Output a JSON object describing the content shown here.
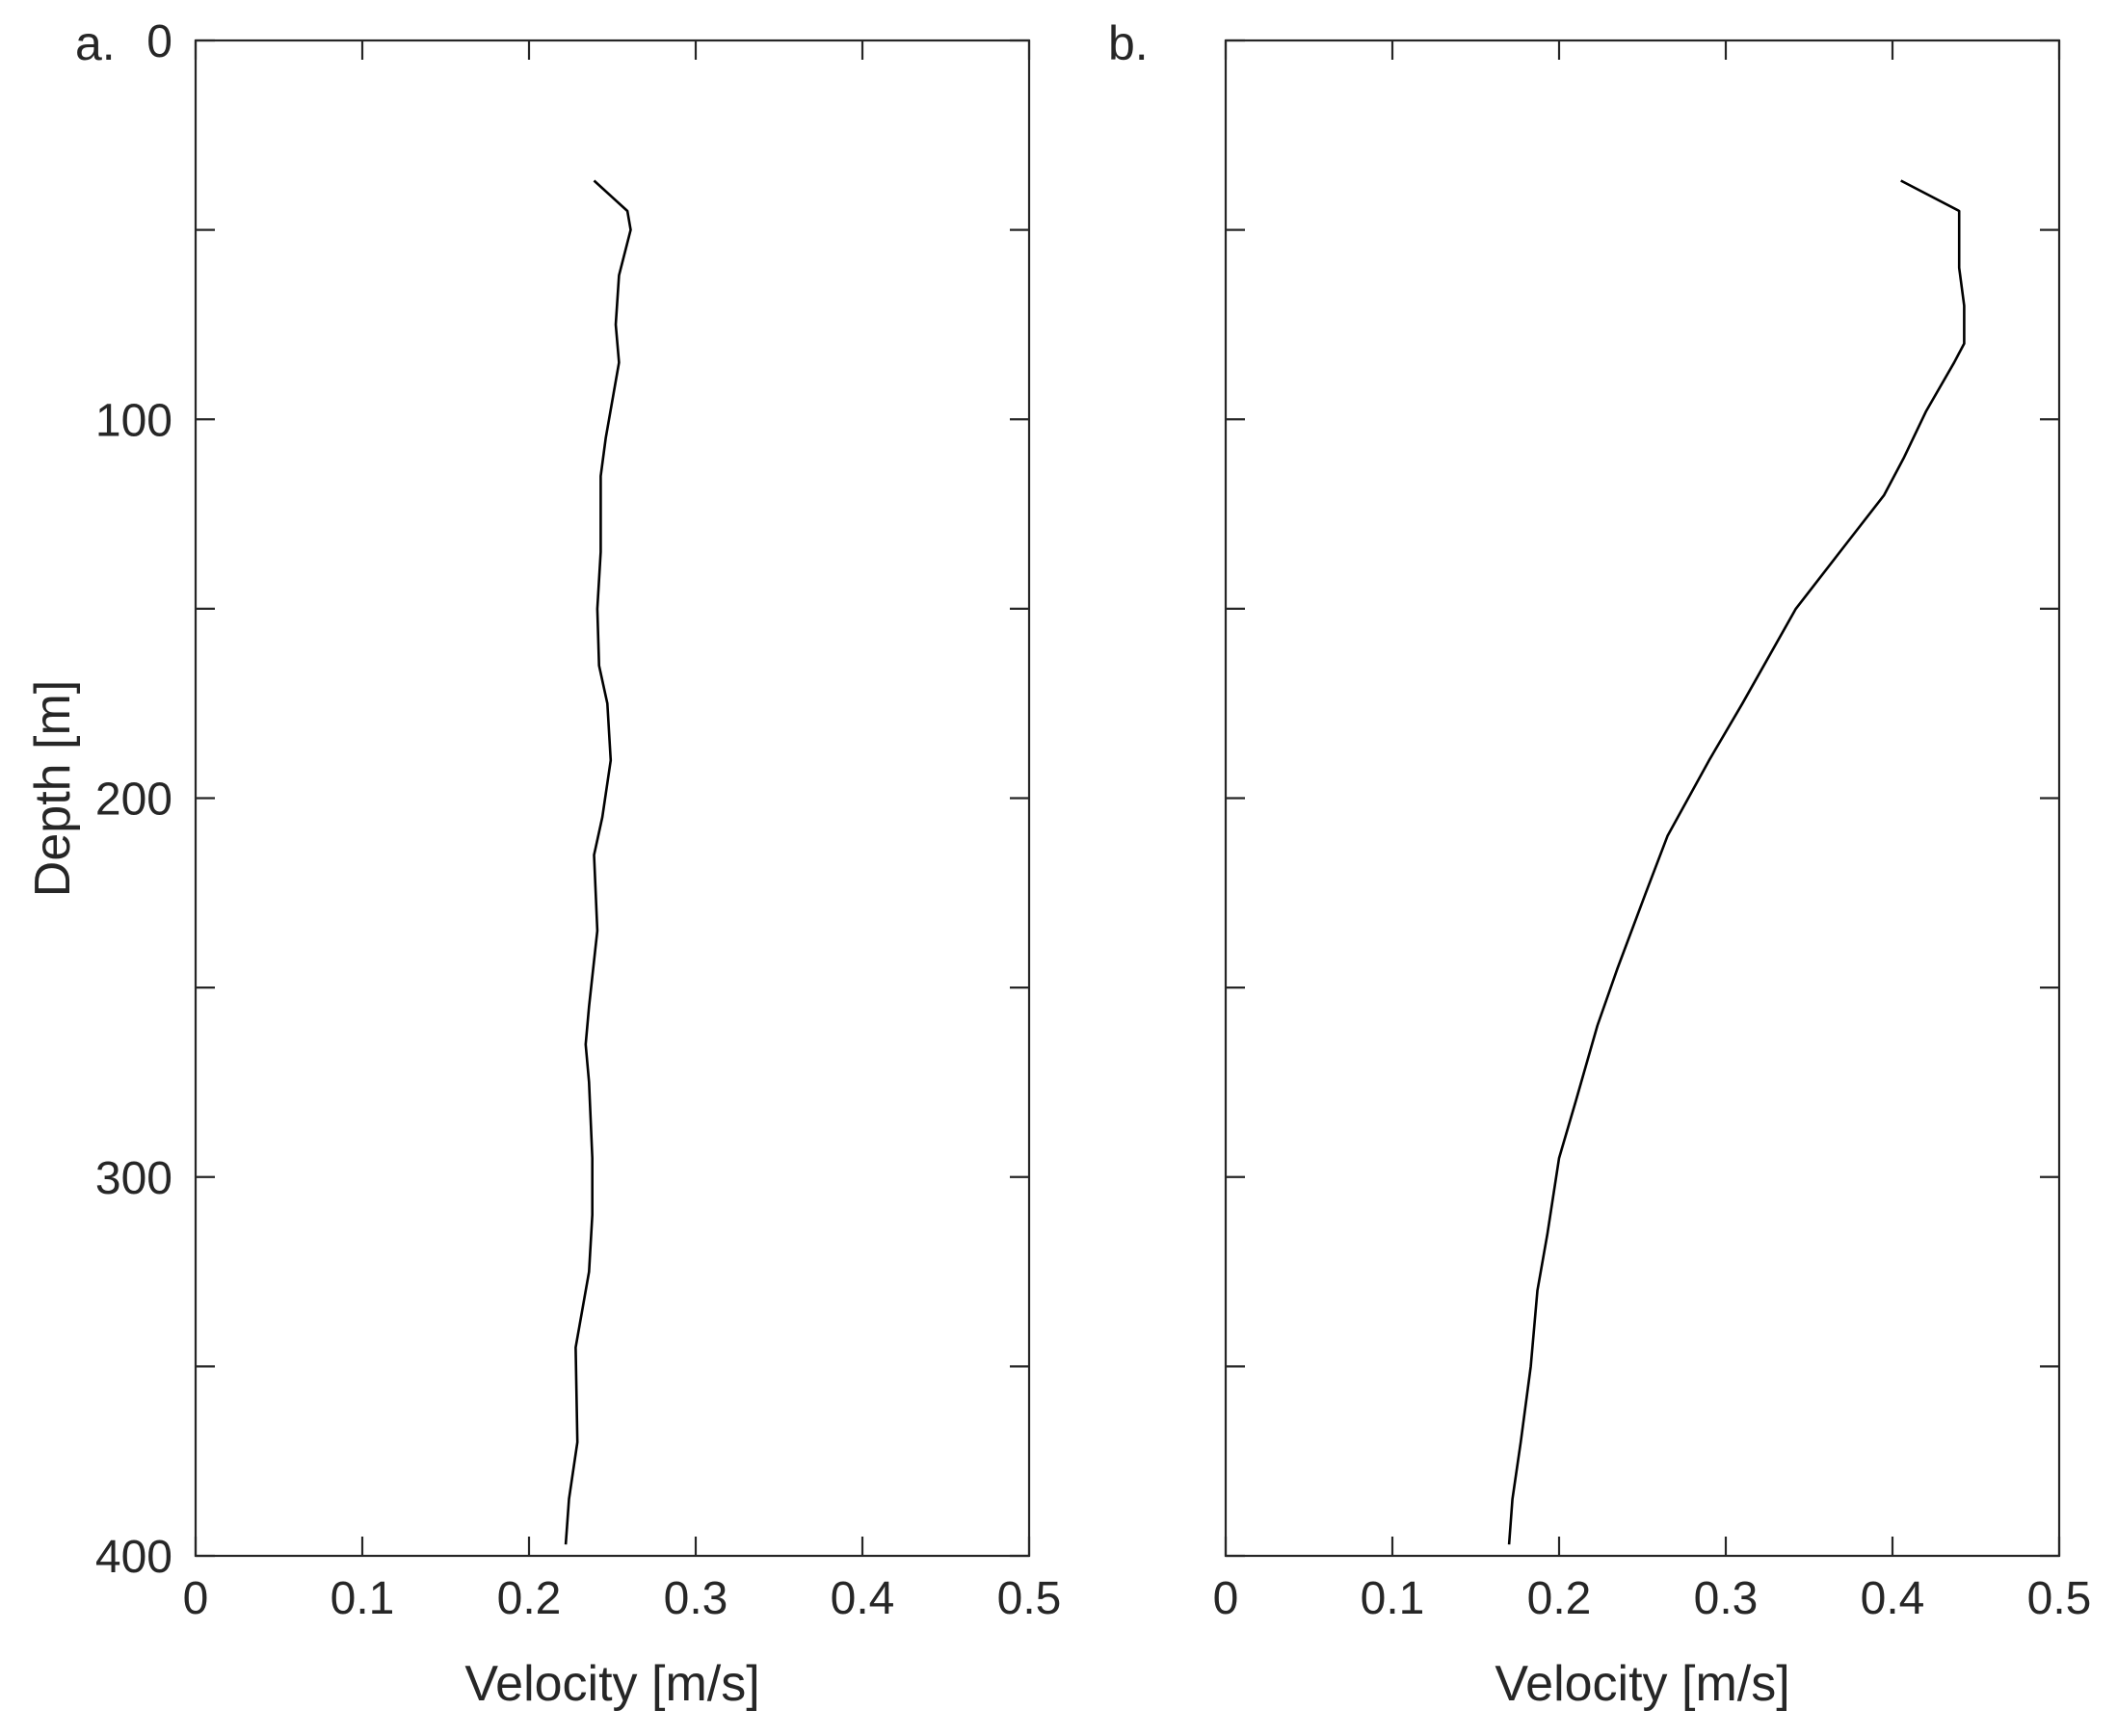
{
  "figure": {
    "panel_letters": [
      "a.",
      "b."
    ]
  },
  "chart_data": [
    {
      "type": "line",
      "panel": "a.",
      "xlabel": "Velocity [m/s]",
      "ylabel": "Depth [m]",
      "xlim": [
        0,
        0.5
      ],
      "ylim": [
        0,
        400
      ],
      "y_reversed": true,
      "xticks": [
        "0",
        "0.1",
        "0.2",
        "0.3",
        "0.4",
        "0.5"
      ],
      "yticks": [
        "0",
        "100",
        "200",
        "300",
        "400"
      ],
      "grid": false,
      "series": [
        {
          "x": [
            0.239,
            0.259,
            0.261,
            0.254,
            0.252,
            0.254,
            0.246,
            0.243,
            0.243,
            0.241,
            0.242,
            0.247,
            0.249,
            0.244,
            0.239,
            0.241,
            0.236,
            0.234,
            0.236,
            0.238,
            0.238,
            0.236,
            0.228,
            0.229,
            0.224,
            0.222
          ],
          "y": [
            37,
            45,
            50,
            62,
            75,
            85,
            105,
            115,
            135,
            150,
            165,
            175,
            190,
            205,
            215,
            235,
            255,
            265,
            275,
            295,
            310,
            325,
            345,
            370,
            385,
            397
          ]
        }
      ]
    },
    {
      "type": "line",
      "panel": "b.",
      "xlabel": "Velocity [m/s]",
      "ylabel": "",
      "xlim": [
        0,
        0.5
      ],
      "ylim": [
        0,
        400
      ],
      "y_reversed": true,
      "xticks": [
        "0",
        "0.1",
        "0.2",
        "0.3",
        "0.4",
        "0.5"
      ],
      "yticks": [],
      "grid": false,
      "series": [
        {
          "x": [
            0.405,
            0.44,
            0.44,
            0.443,
            0.443,
            0.437,
            0.42,
            0.407,
            0.395,
            0.372,
            0.342,
            0.31,
            0.29,
            0.265,
            0.252,
            0.235,
            0.223,
            0.21,
            0.2,
            0.193,
            0.187,
            0.183,
            0.177,
            0.172,
            0.17
          ],
          "y": [
            37,
            45,
            60,
            70,
            80,
            85,
            98,
            110,
            120,
            133,
            150,
            175,
            190,
            210,
            225,
            245,
            260,
            280,
            295,
            315,
            330,
            350,
            370,
            385,
            397
          ]
        }
      ]
    }
  ]
}
